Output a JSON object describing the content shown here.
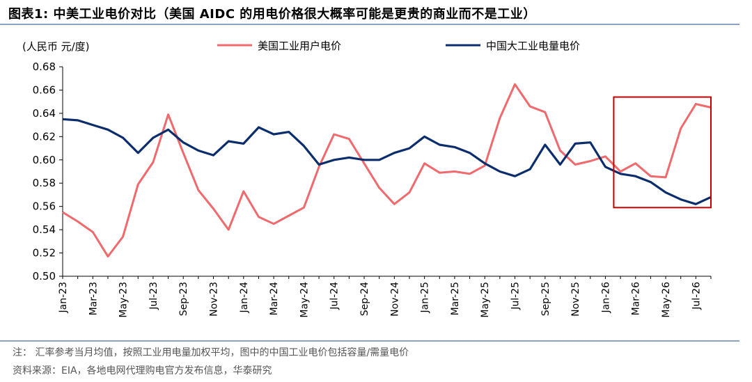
{
  "figure": {
    "title": "图表1:  中美工业电价对比（美国 AIDC 的用电价格很大概率可能是更贵的商业而不是工业）",
    "note": "注： 汇率参考当月均值，按照工业用电量加权平均，图中的中国工业电价包括容量/需量电价",
    "source": "资料来源：EIA，各地电网代理购电官方发布信息，华泰研究"
  },
  "colors": {
    "us": "#f0696c",
    "cn": "#0b2d6b",
    "highlight_box": "#c00000",
    "rule": "#8aa3c0"
  },
  "chart_data": {
    "type": "line",
    "ylabel": "(人民币 元/度)",
    "ylim": [
      0.5,
      0.68
    ],
    "yticks": [
      "0.50",
      "0.52",
      "0.54",
      "0.56",
      "0.58",
      "0.60",
      "0.62",
      "0.64",
      "0.66",
      "0.68"
    ],
    "legend_position": "top",
    "grid": false,
    "x": [
      "Jan-23",
      "Feb-23",
      "Mar-23",
      "Apr-23",
      "May-23",
      "Jun-23",
      "Jul-23",
      "Aug-23",
      "Sep-23",
      "Oct-23",
      "Nov-23",
      "Dec-23",
      "Jan-24",
      "Feb-24",
      "Mar-24",
      "Apr-24",
      "May-24",
      "Jun-24",
      "Jul-24",
      "Aug-24",
      "Sep-24",
      "Oct-24",
      "Nov-24",
      "Dec-24",
      "Jan-25",
      "Feb-25",
      "Mar-25",
      "Apr-25",
      "May-25",
      "Jun-25",
      "Jul-25",
      "Aug-25",
      "Sep-25",
      "Oct-25",
      "Nov-25",
      "Dec-25",
      "Jan-26",
      "Feb-26",
      "Mar-26",
      "Apr-26",
      "May-26",
      "Jun-26",
      "Jul-26",
      "Aug-26"
    ],
    "xtick_labels": [
      "Jan-23",
      "Mar-23",
      "May-23",
      "Jul-23",
      "Sep-23",
      "Nov-23",
      "Jan-24",
      "Mar-24",
      "May-24",
      "Jul-24",
      "Sep-24",
      "Nov-24",
      "Jan-25",
      "Mar-25",
      "May-25",
      "Jul-25",
      "Sep-25",
      "Nov-25",
      "Jan-26",
      "Mar-26",
      "May-26",
      "Jul-26"
    ],
    "series": [
      {
        "name": "美国工业用户电价",
        "values": [
          0.555,
          0.547,
          0.538,
          0.517,
          0.534,
          0.579,
          0.598,
          0.639,
          0.606,
          0.574,
          0.558,
          0.54,
          0.573,
          0.551,
          0.545,
          0.552,
          0.559,
          0.594,
          0.622,
          0.618,
          0.597,
          0.576,
          0.562,
          0.572,
          0.597,
          0.589,
          0.59,
          0.588,
          0.595,
          0.636,
          0.665,
          0.646,
          0.641,
          0.608,
          0.596,
          0.599,
          0.603,
          0.59,
          0.597,
          0.586,
          0.585,
          0.627,
          0.648,
          0.645
        ]
      },
      {
        "name": "中国大工业电量电价",
        "values": [
          0.635,
          0.634,
          0.63,
          0.626,
          0.619,
          0.606,
          0.619,
          0.626,
          0.615,
          0.608,
          0.604,
          0.616,
          0.614,
          0.628,
          0.622,
          0.624,
          0.612,
          0.596,
          0.6,
          0.602,
          0.6,
          0.6,
          0.606,
          0.61,
          0.62,
          0.613,
          0.611,
          0.606,
          0.597,
          0.59,
          0.586,
          0.592,
          0.613,
          0.596,
          0.614,
          0.615,
          0.594,
          0.588,
          0.586,
          0.581,
          0.572,
          0.566,
          0.562,
          0.568
        ]
      }
    ],
    "highlight_range": [
      "Jan-26",
      "Aug-26"
    ]
  }
}
